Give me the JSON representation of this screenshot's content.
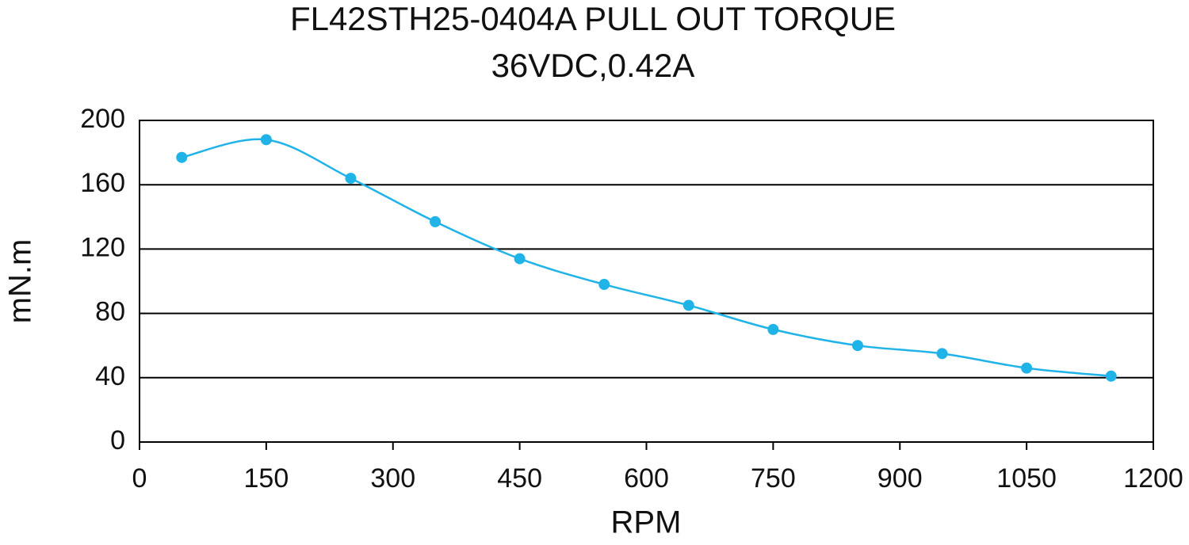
{
  "chart_data": {
    "type": "line",
    "title": "FL42STH25-0404A PULL OUT TORQUE",
    "subtitle": "36VDC,0.42A",
    "x_label": "RPM",
    "y_label": "mN.m",
    "x": [
      50,
      150,
      250,
      350,
      450,
      550,
      650,
      750,
      850,
      950,
      1050,
      1150
    ],
    "series": [
      {
        "name": "Pull out torque",
        "color": "#1fb3e8",
        "values": [
          177,
          188,
          164,
          137,
          114,
          98,
          85,
          70,
          60,
          55,
          46,
          41
        ]
      }
    ],
    "xlim": [
      0,
      1200
    ],
    "xticks": [
      0,
      150,
      300,
      450,
      600,
      750,
      900,
      1050,
      1200
    ],
    "ylim": [
      0,
      200
    ],
    "yticks": [
      0,
      40,
      80,
      120,
      160,
      200
    ],
    "grid": true,
    "smooth": true,
    "markers": true
  }
}
